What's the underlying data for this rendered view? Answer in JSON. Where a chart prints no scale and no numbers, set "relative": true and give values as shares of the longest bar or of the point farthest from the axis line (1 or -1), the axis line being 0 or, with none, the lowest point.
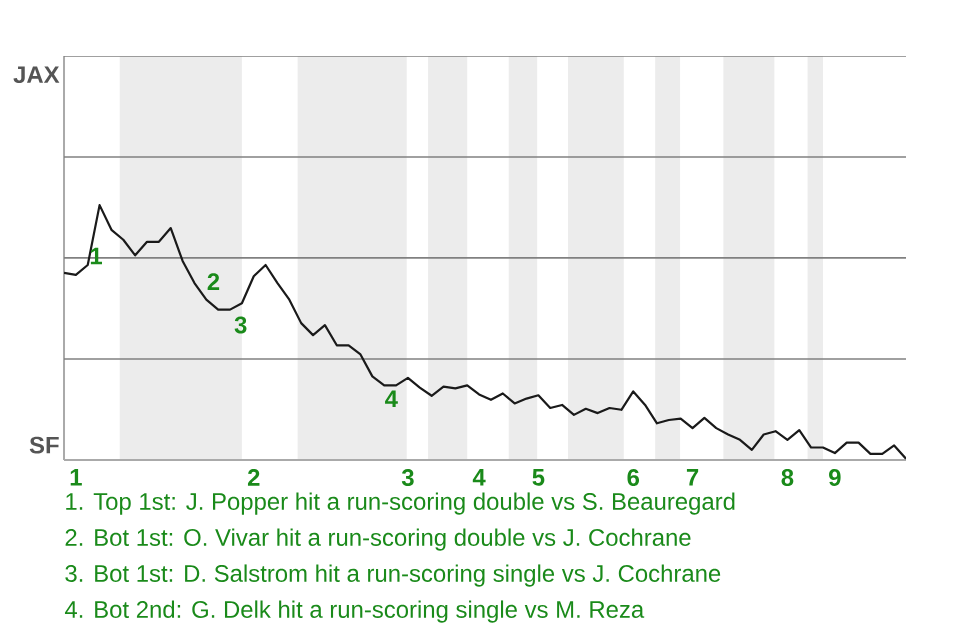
{
  "chart_data": {
    "type": "line",
    "relative": true,
    "categories": [
      null,
      "1",
      null,
      null,
      null,
      null,
      null,
      null,
      null,
      null,
      null,
      null,
      null,
      null,
      null,
      null,
      "2",
      null,
      null,
      null,
      null,
      null,
      null,
      null,
      null,
      null,
      null,
      null,
      null,
      "3",
      null,
      null,
      null,
      null,
      null,
      "4",
      null,
      null,
      null,
      null,
      "5",
      null,
      null,
      null,
      null,
      null,
      null,
      null,
      "6",
      null,
      null,
      null,
      null,
      "7",
      null,
      null,
      null,
      null,
      null,
      null,
      null,
      "8",
      null,
      null,
      null,
      "9",
      null,
      null,
      null,
      null,
      null,
      null
    ],
    "series": [
      {
        "color": "#1a1a1a",
        "values": [
          0.734,
          0.726,
          0.765,
          1,
          0.903,
          0.864,
          0.803,
          0.856,
          0.856,
          0.91,
          0.781,
          0.694,
          0.629,
          0.59,
          0.59,
          0.615,
          0.721,
          0.765,
          0.694,
          0.629,
          0.537,
          0.49,
          0.529,
          0.45,
          0.45,
          0.414,
          0.328,
          0.293,
          0.293,
          0.322,
          0.284,
          0.252,
          0.288,
          0.281,
          0.293,
          0.257,
          0.236,
          0.261,
          0.222,
          0.241,
          0.254,
          0.204,
          0.216,
          0.177,
          0.201,
          0.184,
          0.204,
          0.197,
          0.269,
          0.216,
          0.144,
          0.157,
          0.162,
          0.125,
          0.165,
          0.125,
          0.1,
          0.079,
          0.04,
          0.1,
          0.113,
          0.079,
          0.117,
          0.049,
          0.049,
          0.027,
          0.068,
          0.068,
          0.024,
          0.024,
          0.057,
          0.005
        ]
      }
    ],
    "marker": "none",
    "line_style": "solid",
    "ref_lines": [
      {
        "axis": "y",
        "value": 0.396,
        "color": "#808080"
      },
      {
        "axis": "y",
        "value": 0.793,
        "color": "#808080"
      },
      {
        "axis": "y",
        "value": 1.189,
        "color": "#808080"
      },
      {
        "axis": "y",
        "value": 1.585,
        "color": "#808080"
      }
    ],
    "annotations": [
      "JAX",
      "SF",
      "1",
      "2",
      "3",
      "4",
      "1. Top 1st: J. Popper hit a run-scoring double vs S. Beauregard",
      "2. Bot 1st: O. Vivar hit a run-scoring double vs J. Cochrane",
      "3. Bot 1st: D. Salstrom hit a run-scoring single vs J. Cochrane",
      "4. Bot 2nd: G. Delk hit a run-scoring single vs M. Reza"
    ]
  }
}
